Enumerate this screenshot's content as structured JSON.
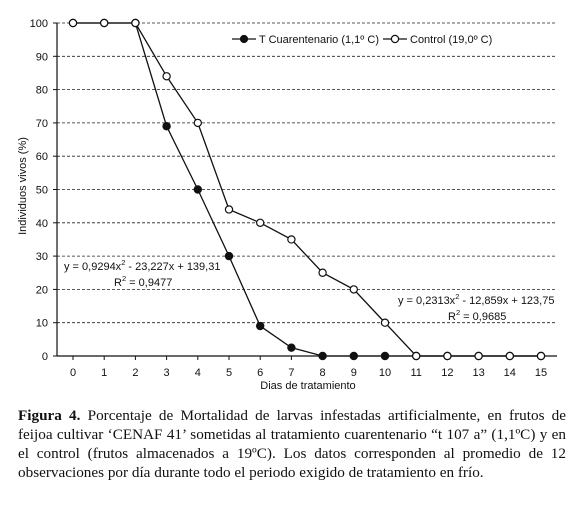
{
  "chart_data": {
    "type": "line",
    "xlabel": "Dias de tratamiento",
    "ylabel": "Individuos vivos (%)",
    "xlim": [
      0,
      15
    ],
    "ylim": [
      0,
      100
    ],
    "x_ticks": [
      "0",
      "1",
      "2",
      "3",
      "4",
      "5",
      "6",
      "7",
      "8",
      "9",
      "10",
      "11",
      "12",
      "13",
      "14",
      "15"
    ],
    "y_ticks": [
      "0",
      "10",
      "20",
      "30",
      "40",
      "50",
      "60",
      "70",
      "80",
      "90",
      "100"
    ],
    "grid": "horizontal-dashed",
    "legend_position": "top-right",
    "series": [
      {
        "name": "T  Cuarentenario (1,1º C)",
        "marker": "filled-circle",
        "color": "#111111",
        "x": [
          0,
          1,
          2,
          3,
          4,
          5,
          6,
          7,
          8,
          9,
          10,
          11,
          12,
          13,
          14,
          15
        ],
        "y": [
          100,
          100,
          100,
          69,
          50,
          30,
          9,
          2.5,
          0,
          0,
          0,
          0,
          0,
          0,
          0,
          0
        ]
      },
      {
        "name": "Control (19,0º C)",
        "marker": "open-circle",
        "color": "#111111",
        "x": [
          0,
          1,
          2,
          3,
          4,
          5,
          6,
          7,
          8,
          9,
          10,
          11,
          12,
          13,
          14,
          15
        ],
        "y": [
          100,
          100,
          100,
          84,
          70,
          44,
          40,
          35,
          25,
          20,
          10,
          0,
          0,
          0,
          0,
          0
        ]
      }
    ],
    "annotations": [
      {
        "eq_prefix": "y = 0,9294x",
        "eq_exp": "2",
        "eq_suffix": " - 23,227x + 139,31",
        "r2_label": "R",
        "r2_exp": "2",
        "r2_value": " = 0,9477"
      },
      {
        "eq_prefix": "y = 0,2313x",
        "eq_exp": "2",
        "eq_suffix": " - 12,859x + 123,75",
        "r2_label": "R",
        "r2_exp": "2",
        "r2_value": " = 0,9685"
      }
    ]
  },
  "caption": {
    "label": "Figura 4.",
    "text": " Porcentaje de Mortalidad de larvas infestadas artificialmente, en frutos de feijoa cultivar ‘CENAF 41’ sometidas al tratamiento cuarentenario “t 107 a” (1,1ºC) y en el control (frutos almacenados a 19ºC). Los datos corresponden al promedio de 12 observaciones por día durante todo el periodo exigido de tratamiento en frío."
  }
}
